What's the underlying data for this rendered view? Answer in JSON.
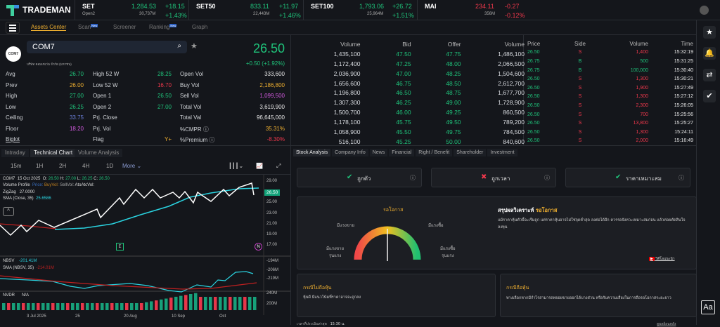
{
  "app": {
    "name": "TRADEMAN"
  },
  "indices": [
    {
      "name": "SET",
      "value": "1,284.53",
      "change": "+18.15",
      "sub": "Open2",
      "volume": "30,737M",
      "pct": "+1.43%",
      "color": "#1fc27a"
    },
    {
      "name": "SET50",
      "value": "833.11",
      "change": "+11.97",
      "sub": "",
      "volume": "22,443M",
      "pct": "+1.46%",
      "color": "#1fc27a"
    },
    {
      "name": "SET100",
      "value": "1,793.06",
      "change": "+26.72",
      "sub": "",
      "volume": "25,964M",
      "pct": "+1.51%",
      "color": "#1fc27a"
    },
    {
      "name": "MAI",
      "value": "234.11",
      "change": "-0.27",
      "sub": "",
      "volume": "356M",
      "pct": "-0.12%",
      "color": "#f0384c"
    }
  ],
  "nav": {
    "items": [
      "Assets Center",
      "Scan",
      "Screener",
      "Ranking",
      "Graph"
    ],
    "new_badge": "New"
  },
  "stock": {
    "symbol": "COM7",
    "company": "บริษัท คอมเซเว่น จำกัด (มหาชน)",
    "price": "26.50",
    "change": "+0.50 (+1.92%)",
    "logo_text": "COM7",
    "stats": [
      [
        {
          "l": "Avg",
          "v": "26.70",
          "c": "g"
        },
        {
          "l": "High 52 W",
          "v": "28.25",
          "c": "g"
        },
        {
          "l": "Open Vol",
          "v": "333,600",
          "c": "w"
        }
      ],
      [
        {
          "l": "Prev",
          "v": "26.00",
          "c": "y"
        },
        {
          "l": "Low 52 W",
          "v": "16.70",
          "c": "r"
        },
        {
          "l": "Buy Vol",
          "v": "2,186,800",
          "c": "y"
        }
      ],
      [
        {
          "l": "High",
          "v": "27.00",
          "c": "g"
        },
        {
          "l": "Open 1",
          "v": "26.50",
          "c": "g"
        },
        {
          "l": "Sell Vol",
          "v": "1,099,500",
          "c": "p"
        }
      ],
      [
        {
          "l": "Low",
          "v": "26.25",
          "c": "g"
        },
        {
          "l": "Open 2",
          "v": "27.00",
          "c": "g"
        },
        {
          "l": "Total Vol",
          "v": "3,619,900",
          "c": "w"
        }
      ],
      [
        {
          "l": "Ceiling",
          "v": "33.75",
          "c": "b"
        },
        {
          "l": "Prj. Close",
          "v": "",
          "c": "w"
        },
        {
          "l": "Total Val",
          "v": "96,645,000",
          "c": "w"
        }
      ],
      [
        {
          "l": "Floor",
          "v": "18.20",
          "c": "p"
        },
        {
          "l": "Prj. Vol",
          "v": "",
          "c": "w"
        },
        {
          "l": "%CMPR ⓘ",
          "v": "35.31%",
          "c": "y"
        }
      ],
      [
        {
          "l": "Biglot",
          "v": "",
          "c": "w"
        },
        {
          "l": "Flag",
          "v": "Y+",
          "c": "y"
        },
        {
          "l": "%Premium ⓘ",
          "v": "-8.30%",
          "c": "r"
        }
      ]
    ]
  },
  "orderbook": {
    "headers": [
      "Volume",
      "Bid",
      "Offer",
      "Volume"
    ],
    "rows": [
      [
        "1,435,100",
        "47.50",
        "47.75",
        "1,486,100"
      ],
      [
        "1,172,400",
        "47.25",
        "48.00",
        "2,066,500"
      ],
      [
        "2,036,900",
        "47.00",
        "48.25",
        "1,504,600"
      ],
      [
        "1,656,600",
        "46.75",
        "48.50",
        "2,612,700"
      ],
      [
        "1,196,800",
        "46.50",
        "48.75",
        "1,677,700"
      ],
      [
        "1,307,300",
        "46.25",
        "49.00",
        "1,728,900"
      ],
      [
        "1,500,700",
        "46.00",
        "49.25",
        "860,500"
      ],
      [
        "1,178,100",
        "45.75",
        "49.50",
        "789,200"
      ],
      [
        "1,058,900",
        "45.50",
        "49.75",
        "784,500"
      ],
      [
        "516,100",
        "45.25",
        "50.00",
        "840,600"
      ]
    ]
  },
  "trades": {
    "headers": [
      "Price",
      "Side",
      "Volume",
      "Time"
    ],
    "rows": [
      [
        "26.50",
        "S",
        "1,400",
        "15:32:19"
      ],
      [
        "26.75",
        "B",
        "500",
        "15:31:25"
      ],
      [
        "26.75",
        "B",
        "100,000",
        "15:30:40"
      ],
      [
        "26.50",
        "S",
        "1,300",
        "15:30:21"
      ],
      [
        "26.50",
        "S",
        "1,900",
        "15:27:49"
      ],
      [
        "26.50",
        "S",
        "1,300",
        "15:27:12"
      ],
      [
        "26.50",
        "S",
        "2,300",
        "15:26:05"
      ],
      [
        "26.50",
        "S",
        "700",
        "15:25:56"
      ],
      [
        "26.50",
        "S",
        "13,800",
        "15:25:27"
      ],
      [
        "26.50",
        "S",
        "1,300",
        "15:24:11"
      ],
      [
        "26.50",
        "S",
        "2,000",
        "15:16:49"
      ]
    ]
  },
  "chart_tabs": [
    "Intraday",
    "Technical Chart",
    "Volume Analysis"
  ],
  "timeframes": [
    "15m",
    "1H",
    "2H",
    "4H",
    "1D",
    "More"
  ],
  "chart": {
    "symbol": "COM7",
    "date": "15 Oct 2025",
    "o": "26.50",
    "h": "27.00",
    "l": "26.25",
    "c": "26.50",
    "vp": "Volume Profile",
    "vp_price": "Price:",
    "vp_buy": "BuyVol:",
    "vp_sell": "SellVol:",
    "vp_ato": "AtoAtcVol:",
    "zigzag": "ZigZag",
    "zigzag_val": "27.0000",
    "sma": "SMA (Close, 35)",
    "sma_val": "25.6586",
    "price_ticks": [
      "29.00",
      "25.00",
      "23.00",
      "21.00",
      "19.00",
      "17.00"
    ],
    "last_price": "26.50",
    "nbsv": "NBSV",
    "nbsv_val": "-201.41M",
    "nbsv_sma": "SMA (NBSV, 35)",
    "nbsv_sma_val": "-214.01M",
    "nbsv_ticks": [
      "-194M",
      "-206M",
      "-219M"
    ],
    "nvdr": "NVDR",
    "nvdr_val": "N/A",
    "nvdr_ticks": [
      "240M",
      "200M"
    ],
    "x_ticks": [
      "3 Jul 2025",
      "25",
      "20 Aug",
      "10 Sep",
      "Oct"
    ],
    "marker_e": "E",
    "marker_n": "N"
  },
  "analysis_tabs": [
    "Stock Analysis",
    "Company Info",
    "News",
    "Financial",
    "Right / Benefit",
    "Shareholder",
    "Investment"
  ],
  "checks": [
    {
      "label": "ถูกตัว",
      "ok": true
    },
    {
      "label": "ถูกเวลา",
      "ok": false
    },
    {
      "label": "ราคาเหมาะสม",
      "ok": true
    }
  ],
  "gauge": {
    "title": "รอโอกาส",
    "left": "มีแรงขาย",
    "right": "มีแรงซื้อ",
    "far_left_1": "มีแรงขาย",
    "far_left_2": "รุนแรง",
    "far_right_1": "มีแรงซื้อ",
    "far_right_2": "รุนแรง",
    "level": 0.5
  },
  "summary": {
    "title": "สรุปผลวิเคราะห์",
    "status": "รอโอกาส",
    "text": "แม้ราคาหุ้นตัวนี้จะเริ่มถูก แต่ราคาหุ้นอาจไม่ใช่จุดต่ำสุด ลงต่อได้อีก ควรรอจังหวะเหมาะสมก่อน แล้วค่อยตัดสินใจลงทุน",
    "video": "วิดีโอแนะนำ"
  },
  "case_no": {
    "title": "กรณีไม่ถือหุ้น",
    "text": "หุ้นดี มีแนวโน้มที่ราคาอาจจะถูกลง"
  },
  "case_yes": {
    "title": "กรณีถือหุ้น",
    "text": "ทางเลือกหากมีกำไรสามารถทยอยขายออกได้บางส่วน หรือรับความเสี่ยงในการถือรอโอกาสระยะยาว"
  },
  "footer": {
    "eval_label": "เวลาที่ประเมินล่าสุด",
    "eval_time": "15:30 น.",
    "history": "ดูผลย้อนหลัง"
  },
  "font_button": "Aa"
}
